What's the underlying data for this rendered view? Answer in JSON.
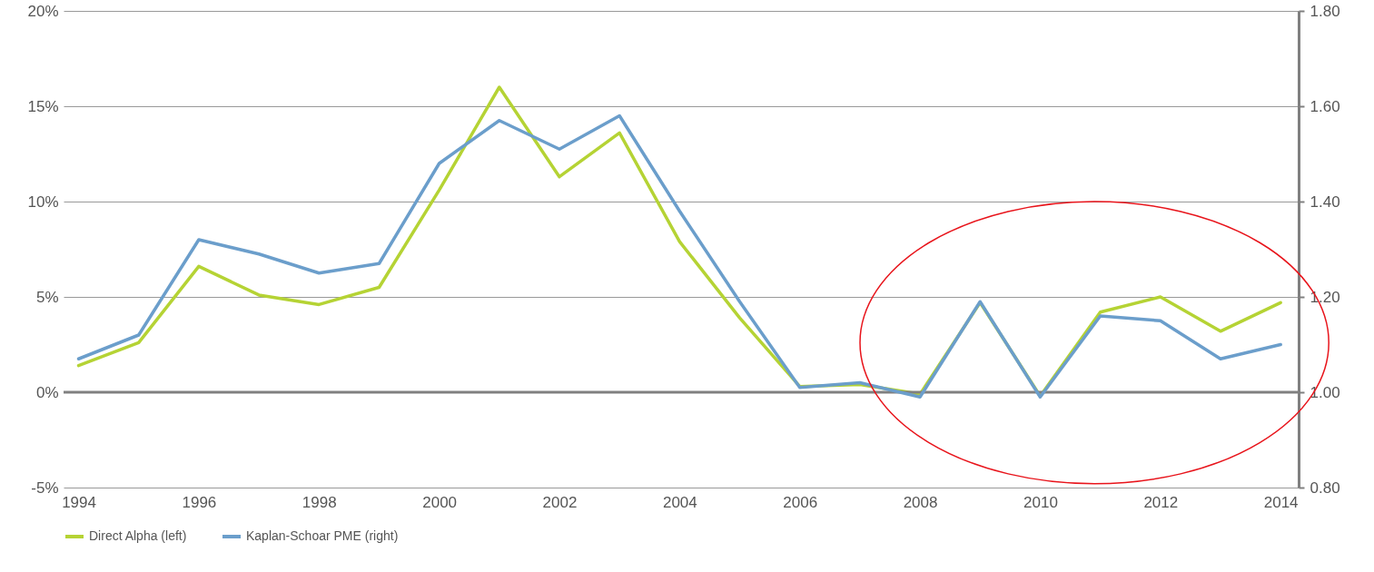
{
  "chart_data": {
    "type": "line",
    "x": [
      1994,
      1995,
      1996,
      1997,
      1998,
      1999,
      2000,
      2001,
      2002,
      2003,
      2004,
      2005,
      2006,
      2007,
      2008,
      2009,
      2010,
      2011,
      2012,
      2013,
      2014
    ],
    "series": [
      {
        "name": "Direct Alpha (left)",
        "color": "#b5d334",
        "values": [
          1.4,
          2.6,
          6.6,
          5.1,
          4.6,
          5.5,
          10.6,
          16.0,
          11.3,
          13.6,
          7.9,
          3.9,
          0.3,
          0.4,
          -0.1,
          4.7,
          -0.2,
          4.2,
          5.0,
          3.2,
          4.7
        ]
      },
      {
        "name": "Kaplan-Schoar PME (right)",
        "color": "#6b9ecb",
        "axis": "y2",
        "values": [
          1.07,
          1.12,
          1.32,
          1.29,
          1.25,
          1.27,
          1.48,
          1.57,
          1.51,
          1.58,
          1.38,
          1.19,
          1.01,
          1.02,
          0.99,
          1.19,
          0.99,
          1.16,
          1.15,
          1.07,
          1.1
        ]
      }
    ],
    "xlim": [
      1993.75,
      2014.3
    ],
    "xticks": [
      1994,
      1996,
      1998,
      2000,
      2002,
      2004,
      2006,
      2008,
      2010,
      2012,
      2014
    ],
    "ylim": [
      -5,
      20
    ],
    "yticks": [
      {
        "value": -5,
        "label": "-5%"
      },
      {
        "value": 0,
        "label": "0%"
      },
      {
        "value": 5,
        "label": "5%"
      },
      {
        "value": 10,
        "label": "10%"
      },
      {
        "value": 15,
        "label": "15%"
      },
      {
        "value": 20,
        "label": "20%"
      }
    ],
    "y2lim": [
      0.8,
      1.8
    ],
    "y2ticks": [
      {
        "value": 0.8,
        "label": "0.80"
      },
      {
        "value": 1,
        "label": "1.00"
      },
      {
        "value": 1.2,
        "label": "1.20"
      },
      {
        "value": 1.4,
        "label": "1.40"
      },
      {
        "value": 1.6,
        "label": "1.60"
      },
      {
        "value": 1.8,
        "label": "1.80"
      }
    ],
    "ref_lines": [
      {
        "axis": "y",
        "value": 0,
        "color": "#808080"
      }
    ],
    "grid": "y",
    "legend": "bottom"
  }
}
